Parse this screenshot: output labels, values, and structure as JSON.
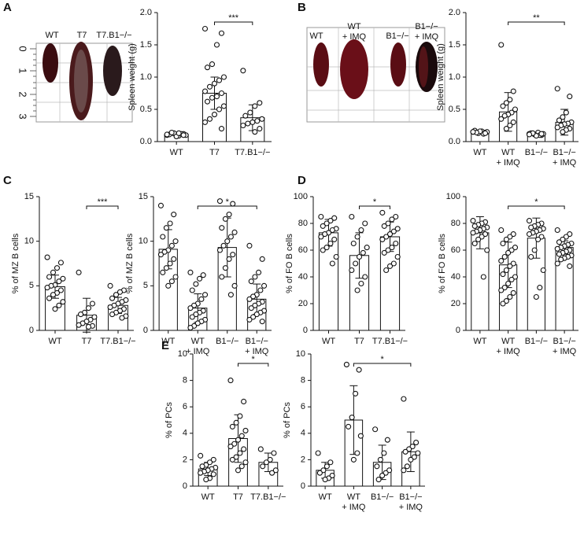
{
  "panel_letters": [
    "A",
    "B",
    "C",
    "D",
    "E"
  ],
  "photos": [
    {
      "labels": [
        "WT",
        "T7",
        "T7.B1−/−"
      ],
      "ruler": [
        0,
        1,
        2,
        3
      ]
    },
    {
      "labels": [
        "WT",
        "WT\n+ IMQ",
        "B1−/−",
        "B1−/−\n+ IMQ"
      ]
    }
  ],
  "chart_data": [
    {
      "type": "bar",
      "y_label": "Spleen weight (g)",
      "categories": [
        "WT",
        "T7",
        "T7.B1−/−"
      ],
      "ylim": [
        0,
        2
      ],
      "yticks": [
        {
          "value": 0,
          "label": "0.0"
        },
        0.5,
        {
          "value": 1,
          "label": "1.0"
        },
        1.5,
        {
          "value": 2,
          "label": "2.0"
        }
      ],
      "values": [
        0.11,
        0.75,
        0.37
      ],
      "errors": [
        0.02,
        0.25,
        0.2
      ],
      "points": [
        [
          0.1,
          0.12,
          0.09,
          0.13,
          0.11,
          0.1,
          0.12,
          0.08,
          0.14,
          0.11,
          0.1,
          0.13
        ],
        [
          1.75,
          1.68,
          1.5,
          1.2,
          1.15,
          1.0,
          0.95,
          0.9,
          0.85,
          0.78,
          0.75,
          0.7,
          0.68,
          0.62,
          0.55,
          0.5,
          0.42,
          0.35,
          0.3,
          0.2
        ],
        [
          1.1,
          0.6,
          0.55,
          0.45,
          0.4,
          0.35,
          0.32,
          0.3,
          0.28,
          0.25,
          0.2,
          0.15
        ]
      ],
      "significance": {
        "text": "***",
        "between": [
          1,
          2
        ]
      }
    },
    {
      "type": "bar",
      "y_label": "Spleen weight (g)",
      "categories": [
        "WT",
        "WT\n+ IMQ",
        "B1−/−",
        "B1−/−\n+ IMQ"
      ],
      "ylim": [
        0,
        2
      ],
      "yticks": [
        {
          "value": 0,
          "label": "0.0"
        },
        0.5,
        {
          "value": 1,
          "label": "1.0"
        },
        1.5,
        {
          "value": 2,
          "label": "2.0"
        }
      ],
      "values": [
        0.15,
        0.46,
        0.12,
        0.3
      ],
      "errors": [
        0.02,
        0.3,
        0.02,
        0.2
      ],
      "points": [
        [
          0.15,
          0.14,
          0.16,
          0.13,
          0.17,
          0.15,
          0.12,
          0.16,
          0.14,
          0.15,
          0.13
        ],
        [
          1.5,
          0.78,
          0.65,
          0.6,
          0.55,
          0.5,
          0.45,
          0.42,
          0.4,
          0.35,
          0.3,
          0.25,
          0.2
        ],
        [
          0.12,
          0.1,
          0.14,
          0.11,
          0.13,
          0.12,
          0.1,
          0.09,
          0.13,
          0.11,
          0.12
        ],
        [
          0.82,
          0.7,
          0.45,
          0.38,
          0.33,
          0.3,
          0.28,
          0.27,
          0.25,
          0.22,
          0.2,
          0.18,
          0.15
        ]
      ],
      "significance": {
        "text": "**",
        "between": [
          1,
          3
        ]
      }
    },
    {
      "type": "bar",
      "y_label": "% of MZ B cells",
      "categories": [
        "WT",
        "T7",
        "T7.B1−/−"
      ],
      "ylim": [
        0,
        15
      ],
      "yticks": [
        0,
        5,
        10,
        15
      ],
      "values": [
        4.9,
        1.7,
        2.8
      ],
      "errors": [
        1.3,
        1.9,
        0.9
      ],
      "points": [
        [
          8.2,
          7.6,
          7.0,
          6.5,
          6.0,
          5.8,
          5.5,
          5.1,
          5.0,
          4.8,
          4.5,
          4.2,
          4.0,
          3.6,
          3.2,
          2.8,
          2.4
        ],
        [
          6.5,
          3.0,
          2.5,
          2.0,
          1.8,
          1.5,
          1.2,
          1.0,
          0.8,
          0.6,
          0.5,
          0.4
        ],
        [
          5.0,
          4.5,
          4.3,
          4.0,
          3.6,
          3.4,
          3.2,
          3.0,
          2.8,
          2.6,
          2.4,
          2.2,
          2.0,
          1.8,
          1.6,
          1.4
        ]
      ],
      "significance": {
        "text": "***",
        "between": [
          1,
          2
        ]
      }
    },
    {
      "type": "bar",
      "y_label": "% of MZ B cells",
      "categories": [
        "WT",
        "WT\n+ IMQ",
        "B1−/−",
        "B1−/−\n+ IMQ"
      ],
      "ylim": [
        0,
        15
      ],
      "yticks": [
        0,
        5,
        10,
        15
      ],
      "values": [
        9.1,
        2.5,
        9.3,
        3.5
      ],
      "errors": [
        2.2,
        1.6,
        3.3,
        1.7
      ],
      "points": [
        [
          14,
          13,
          12,
          11.5,
          10.5,
          10,
          9.5,
          9,
          8.8,
          8.5,
          8,
          7.5,
          7,
          6.5,
          6,
          5.5,
          5
        ],
        [
          6.5,
          6.2,
          5.8,
          5.2,
          4.5,
          4,
          3.5,
          3,
          2.8,
          2.5,
          2.2,
          2,
          1.8,
          1.5,
          1.2,
          1,
          0.8,
          0.5,
          0.3
        ],
        [
          14.5,
          14.2,
          13,
          12.5,
          11.5,
          11,
          10.5,
          10,
          9.5,
          9,
          8.5,
          8,
          7,
          6,
          5,
          4
        ],
        [
          9.5,
          8,
          6.5,
          6,
          5.5,
          5,
          4.5,
          4,
          3.8,
          3.5,
          3.2,
          3,
          2.8,
          2.5,
          2.2,
          2,
          1.8,
          1.5,
          1.2,
          1
        ]
      ],
      "significance": {
        "text": "*",
        "between": [
          1,
          3
        ]
      }
    },
    {
      "type": "bar",
      "y_label": "% of FO B cells",
      "categories": [
        "WT",
        "T7",
        "T7.B1−/−"
      ],
      "ylim": [
        0,
        100
      ],
      "yticks": [
        0,
        20,
        40,
        60,
        80,
        100
      ],
      "values": [
        73,
        56,
        70
      ],
      "errors": [
        10,
        17,
        11
      ],
      "points": [
        [
          85,
          84,
          82,
          80,
          78,
          76,
          75,
          73,
          72,
          70,
          68,
          65,
          62,
          60,
          55,
          50
        ],
        [
          85,
          80,
          75,
          70,
          65,
          62,
          58,
          55,
          50,
          45,
          40,
          35,
          30
        ],
        [
          88,
          85,
          83,
          80,
          78,
          76,
          74,
          72,
          70,
          68,
          65,
          62,
          60,
          58,
          55,
          50,
          48,
          45
        ]
      ],
      "significance": {
        "text": "*",
        "between": [
          1,
          2
        ]
      }
    },
    {
      "type": "bar",
      "y_label": "% of FO B cells",
      "categories": [
        "WT",
        "WT\n+ IMQ",
        "B1−/−",
        "B1−/−\n+ IMQ"
      ],
      "ylim": [
        0,
        100
      ],
      "yticks": [
        0,
        20,
        40,
        60,
        80,
        100
      ],
      "values": [
        73,
        49,
        69,
        62
      ],
      "errors": [
        12,
        17,
        15,
        5
      ],
      "points": [
        [
          82,
          81,
          80,
          79,
          78,
          77,
          76,
          75,
          74,
          73,
          72,
          70,
          68,
          65,
          60,
          40
        ],
        [
          75,
          72,
          70,
          68,
          65,
          62,
          60,
          58,
          55,
          52,
          50,
          48,
          45,
          42,
          40,
          38,
          35,
          32,
          30,
          28,
          25,
          22,
          20
        ],
        [
          82,
          80,
          79,
          78,
          77,
          76,
          75,
          74,
          73,
          72,
          70,
          68,
          60,
          55,
          45,
          32,
          25
        ],
        [
          75,
          72,
          70,
          68,
          66,
          65,
          64,
          63,
          62,
          61,
          60,
          59,
          58,
          57,
          56,
          55,
          54,
          53,
          50,
          48
        ]
      ],
      "significance": {
        "text": "*",
        "between": [
          1,
          3
        ]
      }
    },
    {
      "type": "bar",
      "y_label": "% of PCs",
      "categories": [
        "WT",
        "T7",
        "T7.B1−/−"
      ],
      "ylim": [
        0,
        10
      ],
      "yticks": [
        0,
        2,
        4,
        6,
        8,
        10
      ],
      "values": [
        1.3,
        3.6,
        1.8
      ],
      "errors": [
        0.5,
        1.8,
        0.7
      ],
      "points": [
        [
          2.3,
          2.0,
          1.8,
          1.6,
          1.5,
          1.4,
          1.3,
          1.2,
          1.1,
          1.0,
          0.9,
          0.6,
          0.5
        ],
        [
          8.0,
          6.4,
          5.3,
          4.8,
          4.5,
          4.2,
          3.8,
          3.5,
          3.2,
          3.0,
          2.8,
          2.5,
          2.2,
          2.0,
          1.8,
          1.5,
          1.2
        ],
        [
          2.8,
          2.5,
          2.0,
          1.8,
          1.5,
          1.2,
          1.0
        ]
      ],
      "significance": {
        "text": "*",
        "between": [
          1,
          2
        ]
      }
    },
    {
      "type": "bar",
      "y_label": "% of PCs",
      "categories": [
        "WT",
        "WT\n+ IMQ",
        "B1−/−",
        "B1−/−\n+ IMQ"
      ],
      "ylim": [
        0,
        10
      ],
      "yticks": [
        0,
        2,
        4,
        6,
        8,
        10
      ],
      "values": [
        1.2,
        5.0,
        1.8,
        2.6
      ],
      "errors": [
        0.6,
        2.6,
        1.3,
        1.5
      ],
      "points": [
        [
          2.5,
          1.8,
          1.5,
          1.2,
          1.0,
          0.8,
          0.6,
          0.5
        ],
        [
          9.2,
          8.8,
          7.0,
          5.2,
          4.5,
          3.8,
          2.5,
          2.0
        ],
        [
          4.3,
          3.5,
          2.5,
          2.0,
          1.5,
          1.2,
          1.0,
          0.8,
          0.5
        ],
        [
          6.6,
          3.3,
          3.0,
          2.8,
          2.6,
          2.5,
          2.2,
          2.0,
          1.5,
          1.2
        ]
      ],
      "significance": {
        "text": "*",
        "between": [
          1,
          3
        ]
      }
    }
  ]
}
